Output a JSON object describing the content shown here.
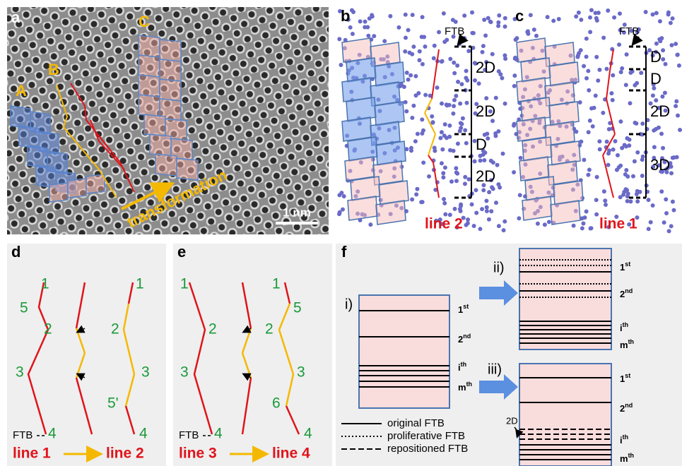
{
  "panels": {
    "a": {
      "label": "a",
      "regions": [
        "A",
        "B",
        "C"
      ],
      "annotation": "transformation",
      "scale_bar": "1 nm"
    },
    "b": {
      "label": "b",
      "ftb": "FTB",
      "spacings": [
        "2D",
        "2D",
        "D",
        "2D"
      ],
      "line": "line 2"
    },
    "c": {
      "label": "c",
      "ftb": "FTB",
      "spacings": [
        "D",
        "D",
        "2D",
        "3D"
      ],
      "line": "line 1"
    },
    "d": {
      "label": "d",
      "left_numbers": [
        "1",
        "5",
        "2",
        "3",
        "4"
      ],
      "right_numbers": [
        "1",
        "2",
        "3",
        "5'",
        "4"
      ],
      "ftb": "FTB",
      "from": "line 1",
      "to": "line 2"
    },
    "e": {
      "label": "e",
      "left_numbers": [
        "1",
        "2",
        "3",
        "4"
      ],
      "right_numbers": [
        "1",
        "5",
        "2",
        "3",
        "6",
        "4"
      ],
      "ftb": "FTB",
      "from": "line 3",
      "to": "line 4"
    },
    "f": {
      "label": "f",
      "steps": [
        "i)",
        "ii)",
        "iii)"
      ],
      "ranks": [
        {
          "base": "1",
          "sup": "st"
        },
        {
          "base": "2",
          "sup": "nd"
        },
        {
          "base": "i",
          "sup": "th"
        },
        {
          "base": "m",
          "sup": "th"
        }
      ],
      "legend": [
        "original FTB",
        "proliferative FTB",
        "repositioned FTB"
      ],
      "spacing": "2D"
    }
  }
}
